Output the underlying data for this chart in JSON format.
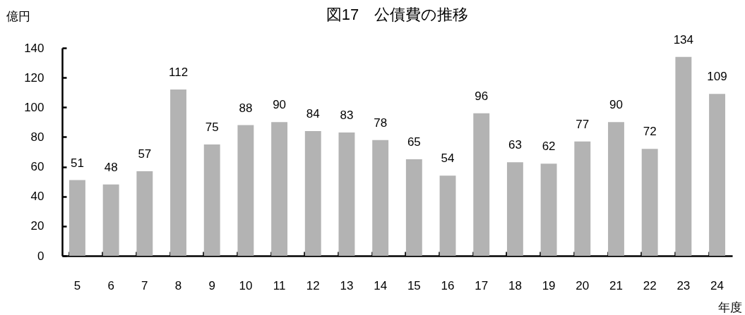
{
  "chart_data": {
    "type": "bar",
    "title": "図17　公債費の推移",
    "ylabel": "億円",
    "xlabel": "年度",
    "categories": [
      "5",
      "6",
      "7",
      "8",
      "9",
      "10",
      "11",
      "12",
      "13",
      "14",
      "15",
      "16",
      "17",
      "18",
      "19",
      "20",
      "21",
      "22",
      "23",
      "24"
    ],
    "values": [
      51,
      48,
      57,
      112,
      75,
      88,
      90,
      84,
      83,
      78,
      65,
      54,
      96,
      63,
      62,
      77,
      90,
      72,
      134,
      109
    ],
    "color": "#b3b3b3",
    "ylim": [
      0,
      140
    ],
    "yticks": [
      0,
      20,
      40,
      60,
      80,
      100,
      120,
      140
    ],
    "data_labels": true
  }
}
